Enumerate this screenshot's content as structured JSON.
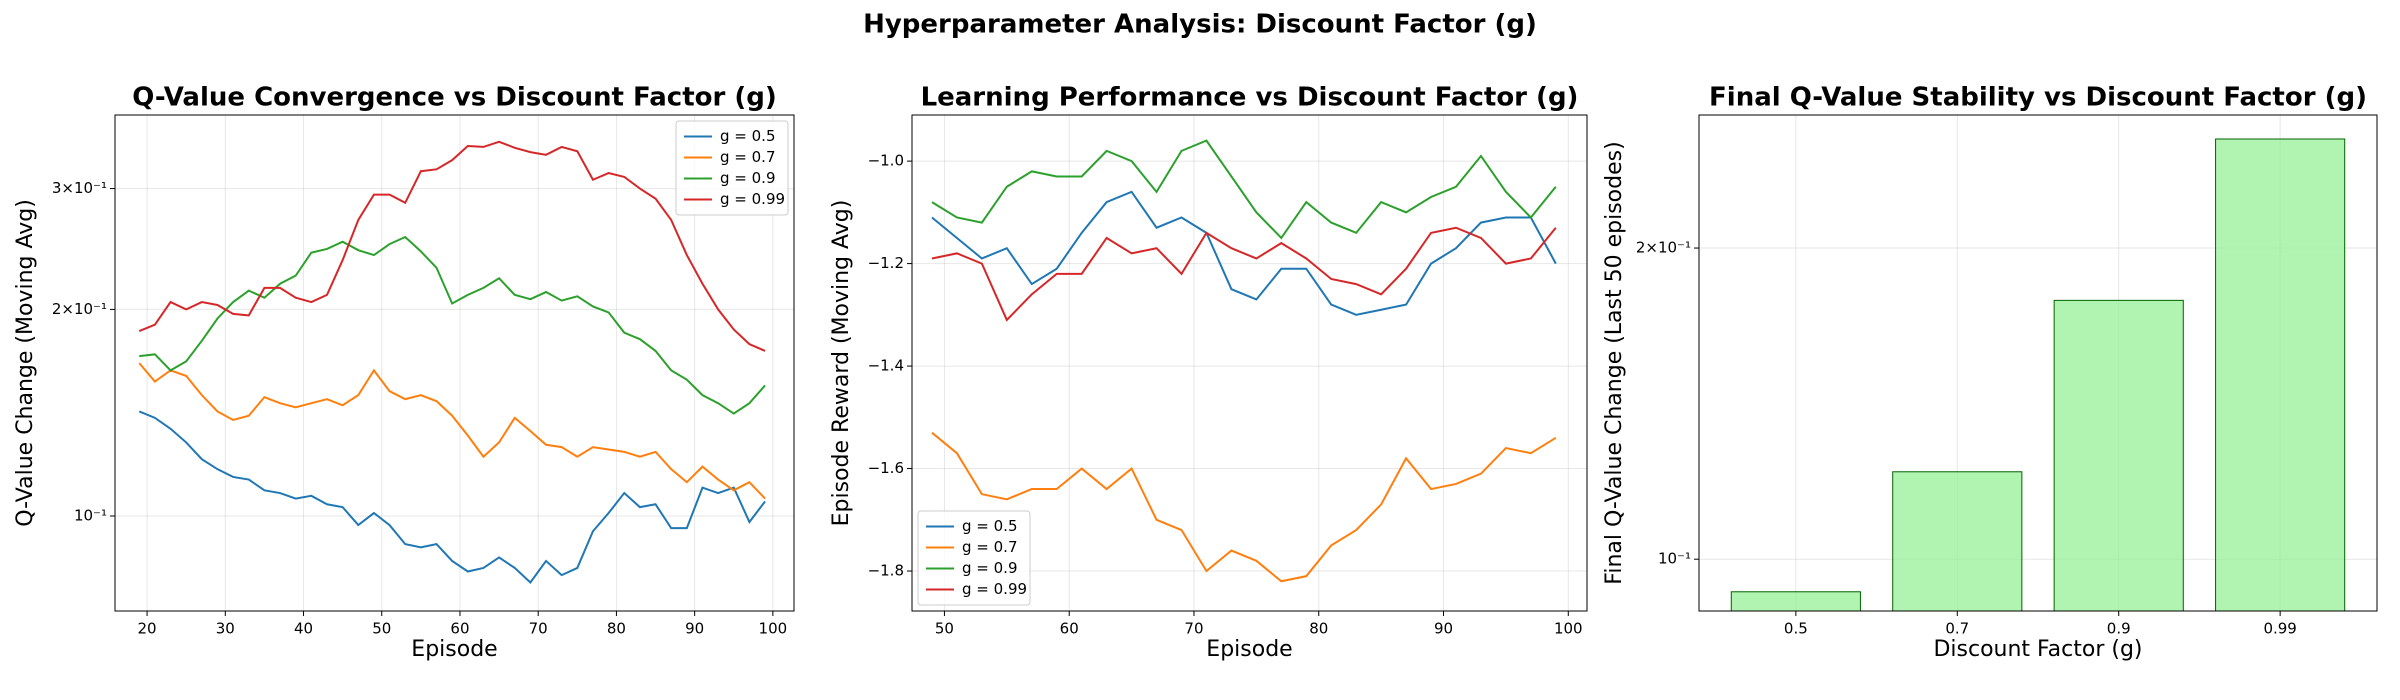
{
  "title": "Hyperparameter Analysis: Discount Factor (g)",
  "chart_data": [
    {
      "type": "line",
      "title": "Q-Value Convergence vs Discount Factor (g)",
      "x_label": "Episode",
      "y_label": "Q-Value Change (Moving Avg)",
      "log_y": true,
      "grid": true,
      "legend": "upper right",
      "xlim": [
        15.9,
        102.7
      ],
      "xticks": [
        20,
        30,
        40,
        50,
        60,
        70,
        80,
        90,
        100
      ],
      "ylim": [
        0.0727,
        0.384
      ],
      "yticks": [
        {
          "value": 0.1,
          "label": "10⁻¹"
        },
        {
          "value": 0.2,
          "label": "2×10⁻¹"
        },
        {
          "value": 0.3,
          "label": "3×10⁻¹"
        }
      ],
      "x": [
        19,
        21,
        23,
        25,
        27,
        29,
        31,
        33,
        35,
        37,
        39,
        41,
        43,
        45,
        47,
        49,
        51,
        53,
        55,
        57,
        59,
        61,
        63,
        65,
        67,
        69,
        71,
        73,
        75,
        77,
        79,
        81,
        83,
        85,
        87,
        89,
        91,
        93,
        95,
        97,
        99
      ],
      "series": [
        {
          "name": "g = 0.5",
          "color": "#1f77b4",
          "values": [
            0.142,
            0.139,
            0.134,
            0.128,
            0.121,
            0.117,
            0.114,
            0.113,
            0.109,
            0.108,
            0.106,
            0.107,
            0.104,
            0.103,
            0.097,
            0.101,
            0.097,
            0.091,
            0.09,
            0.091,
            0.086,
            0.083,
            0.084,
            0.087,
            0.084,
            0.08,
            0.086,
            0.082,
            0.084,
            0.095,
            0.101,
            0.108,
            0.103,
            0.104,
            0.096,
            0.096,
            0.11,
            0.108,
            0.11,
            0.098,
            0.105
          ]
        },
        {
          "name": "g = 0.7",
          "color": "#ff7f0e",
          "values": [
            0.167,
            0.157,
            0.163,
            0.16,
            0.15,
            0.142,
            0.138,
            0.14,
            0.149,
            0.146,
            0.144,
            0.146,
            0.148,
            0.145,
            0.15,
            0.163,
            0.152,
            0.148,
            0.15,
            0.147,
            0.14,
            0.131,
            0.122,
            0.128,
            0.139,
            0.133,
            0.127,
            0.126,
            0.122,
            0.126,
            0.125,
            0.124,
            0.122,
            0.124,
            0.117,
            0.112,
            0.118,
            0.113,
            0.109,
            0.112,
            0.106
          ]
        },
        {
          "name": "g = 0.9",
          "color": "#2ca02c",
          "values": [
            0.171,
            0.172,
            0.163,
            0.168,
            0.18,
            0.194,
            0.205,
            0.213,
            0.208,
            0.218,
            0.224,
            0.242,
            0.245,
            0.251,
            0.244,
            0.24,
            0.249,
            0.255,
            0.243,
            0.23,
            0.204,
            0.21,
            0.215,
            0.222,
            0.21,
            0.207,
            0.212,
            0.206,
            0.209,
            0.202,
            0.198,
            0.185,
            0.181,
            0.174,
            0.163,
            0.158,
            0.15,
            0.146,
            0.141,
            0.146,
            0.155
          ]
        },
        {
          "name": "g = 0.99",
          "color": "#d62728",
          "values": [
            0.186,
            0.19,
            0.205,
            0.2,
            0.205,
            0.203,
            0.197,
            0.196,
            0.215,
            0.215,
            0.208,
            0.205,
            0.21,
            0.236,
            0.27,
            0.294,
            0.294,
            0.286,
            0.318,
            0.32,
            0.33,
            0.346,
            0.345,
            0.351,
            0.344,
            0.339,
            0.336,
            0.345,
            0.34,
            0.309,
            0.316,
            0.312,
            0.3,
            0.29,
            0.27,
            0.24,
            0.218,
            0.2,
            0.187,
            0.178,
            0.174
          ]
        }
      ]
    },
    {
      "type": "line",
      "title": "Learning Performance vs Discount Factor (g)",
      "x_label": "Episode",
      "y_label": "Episode Reward (Moving Avg)",
      "log_y": false,
      "grid": true,
      "legend": "lower left",
      "xlim": [
        47.4,
        101.5
      ],
      "xticks": [
        50,
        60,
        70,
        80,
        90,
        100
      ],
      "ylim": [
        -1.878,
        -0.91
      ],
      "yticks": [
        {
          "value": -1.8,
          "label": "−1.8"
        },
        {
          "value": -1.6,
          "label": "−1.6"
        },
        {
          "value": -1.4,
          "label": "−1.4"
        },
        {
          "value": -1.2,
          "label": "−1.2"
        },
        {
          "value": -1.0,
          "label": "−1.0"
        }
      ],
      "x": [
        49,
        51,
        53,
        55,
        57,
        59,
        61,
        63,
        65,
        67,
        69,
        71,
        73,
        75,
        77,
        79,
        81,
        83,
        85,
        87,
        89,
        91,
        93,
        95,
        97,
        99
      ],
      "series": [
        {
          "name": "g = 0.5",
          "color": "#1f77b4",
          "values": [
            -1.11,
            -1.15,
            -1.19,
            -1.17,
            -1.24,
            -1.21,
            -1.14,
            -1.08,
            -1.06,
            -1.13,
            -1.11,
            -1.14,
            -1.25,
            -1.27,
            -1.21,
            -1.21,
            -1.28,
            -1.3,
            -1.29,
            -1.28,
            -1.2,
            -1.17,
            -1.12,
            -1.11,
            -1.11,
            -1.2
          ]
        },
        {
          "name": "g = 0.7",
          "color": "#ff7f0e",
          "values": [
            -1.53,
            -1.57,
            -1.65,
            -1.66,
            -1.64,
            -1.64,
            -1.6,
            -1.64,
            -1.6,
            -1.7,
            -1.72,
            -1.8,
            -1.76,
            -1.78,
            -1.82,
            -1.81,
            -1.75,
            -1.72,
            -1.67,
            -1.58,
            -1.64,
            -1.63,
            -1.61,
            -1.56,
            -1.57,
            -1.54
          ]
        },
        {
          "name": "g = 0.9",
          "color": "#2ca02c",
          "values": [
            -1.08,
            -1.11,
            -1.12,
            -1.05,
            -1.02,
            -1.03,
            -1.03,
            -0.98,
            -1.0,
            -1.06,
            -0.98,
            -0.96,
            -1.03,
            -1.1,
            -1.15,
            -1.08,
            -1.12,
            -1.14,
            -1.08,
            -1.1,
            -1.07,
            -1.05,
            -0.99,
            -1.06,
            -1.11,
            -1.05
          ]
        },
        {
          "name": "g = 0.99",
          "color": "#d62728",
          "values": [
            -1.19,
            -1.18,
            -1.2,
            -1.31,
            -1.26,
            -1.22,
            -1.22,
            -1.15,
            -1.18,
            -1.17,
            -1.22,
            -1.14,
            -1.17,
            -1.19,
            -1.16,
            -1.19,
            -1.23,
            -1.24,
            -1.26,
            -1.21,
            -1.14,
            -1.13,
            -1.15,
            -1.2,
            -1.19,
            -1.13
          ]
        }
      ]
    },
    {
      "type": "bar",
      "title": "Final Q-Value Stability vs Discount Factor (g)",
      "x_label": "Discount Factor (g)",
      "y_label": "Final Q-Value Change (Last 50 episodes)",
      "log_y": true,
      "grid": true,
      "color": "#90ee90",
      "edgecolor": "#006400",
      "ylim": [
        0.0891,
        0.269
      ],
      "yticks": [
        {
          "value": 0.1,
          "label": "10⁻¹"
        },
        {
          "value": 0.2,
          "label": "2×10⁻¹"
        }
      ],
      "categories": [
        "0.5",
        "0.7",
        "0.9",
        "0.99"
      ],
      "values": [
        0.093,
        0.1215,
        0.178,
        0.255
      ]
    }
  ]
}
